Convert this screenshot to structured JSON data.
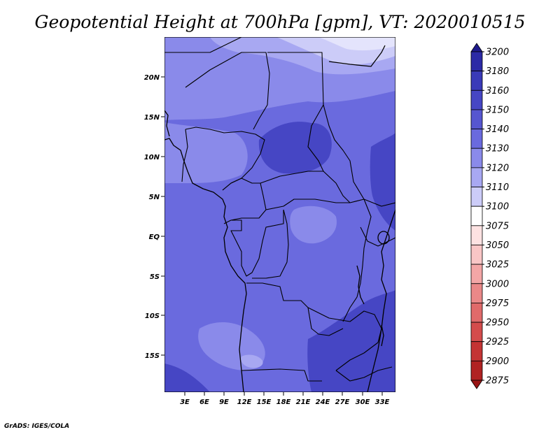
{
  "title": "Geopotential Height at 700hPa [gpm], VT: 2020010515",
  "credit": "GrADS: IGES/COLA",
  "map": {
    "variable": "Geopotential Height",
    "level": "700hPa",
    "units": "gpm",
    "valid_time": "2020010515",
    "lat_labels": [
      "20N",
      "15N",
      "10N",
      "5N",
      "EQ",
      "5S",
      "10S",
      "15S"
    ],
    "lon_labels": [
      "3E",
      "6E",
      "9E",
      "12E",
      "15E",
      "18E",
      "21E",
      "24E",
      "27E",
      "30E",
      "33E"
    ]
  },
  "colorbar": {
    "levels": [
      "3200",
      "3180",
      "3160",
      "3150",
      "3140",
      "3130",
      "3120",
      "3110",
      "3100",
      "3075",
      "3050",
      "3025",
      "3000",
      "2975",
      "2950",
      "2925",
      "2900",
      "2875"
    ],
    "colors": [
      "#1e1a8c",
      "#2c2aa6",
      "#3a3ab8",
      "#4646c4",
      "#5656d0",
      "#6a6ade",
      "#8a8aea",
      "#a8a8f2",
      "#ccccf8",
      "#ffffff",
      "#fde2e2",
      "#f9c6c6",
      "#f3a6a6",
      "#ea8888",
      "#e06a6a",
      "#d44c4c",
      "#c43434",
      "#b02222",
      "#9a1515"
    ]
  }
}
